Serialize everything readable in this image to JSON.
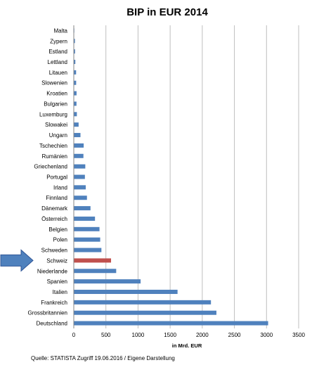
{
  "chart_data": {
    "type": "bar",
    "orientation": "horizontal",
    "title": "BIP in EUR 2014",
    "xlabel": "in Mrd. EUR",
    "ylabel": "",
    "xlim": [
      0,
      3500
    ],
    "x_ticks": [
      "0",
      "500",
      "1000",
      "1500",
      "2000",
      "2500",
      "3000",
      "3500"
    ],
    "grid": true,
    "categories": [
      "Malta",
      "Zypern",
      "Estland",
      "Lettland",
      "Litauen",
      "Slowenien",
      "Kroatien",
      "Bulgarien",
      "Luxemburg",
      "Slowakei",
      "Ungarn",
      "Tschechien",
      "Rumänien",
      "Griechenland",
      "Portugal",
      "Irland",
      "Finnland",
      "Dänemark",
      "Österreich",
      "Belgien",
      "Polen",
      "Schweden",
      "Schweiz",
      "Niederlande",
      "Spanien",
      "Italien",
      "Frankreich",
      "Grossbritannien",
      "Deutschland"
    ],
    "values": [
      8,
      18,
      20,
      24,
      36,
      37,
      43,
      42,
      48,
      75,
      104,
      154,
      150,
      179,
      173,
      186,
      205,
      260,
      330,
      400,
      411,
      430,
      580,
      660,
      1040,
      1615,
      2135,
      2220,
      3025
    ],
    "bar_color": "#4f81bd",
    "highlight": {
      "category": "Schweiz",
      "color": "#c0504d"
    },
    "arrow_target": "Schweiz",
    "arrow_color": "#4f81bd"
  },
  "source_note": "Quelle: STATISTA Zugriff 19.06.2016 / Eigene Darstellung"
}
